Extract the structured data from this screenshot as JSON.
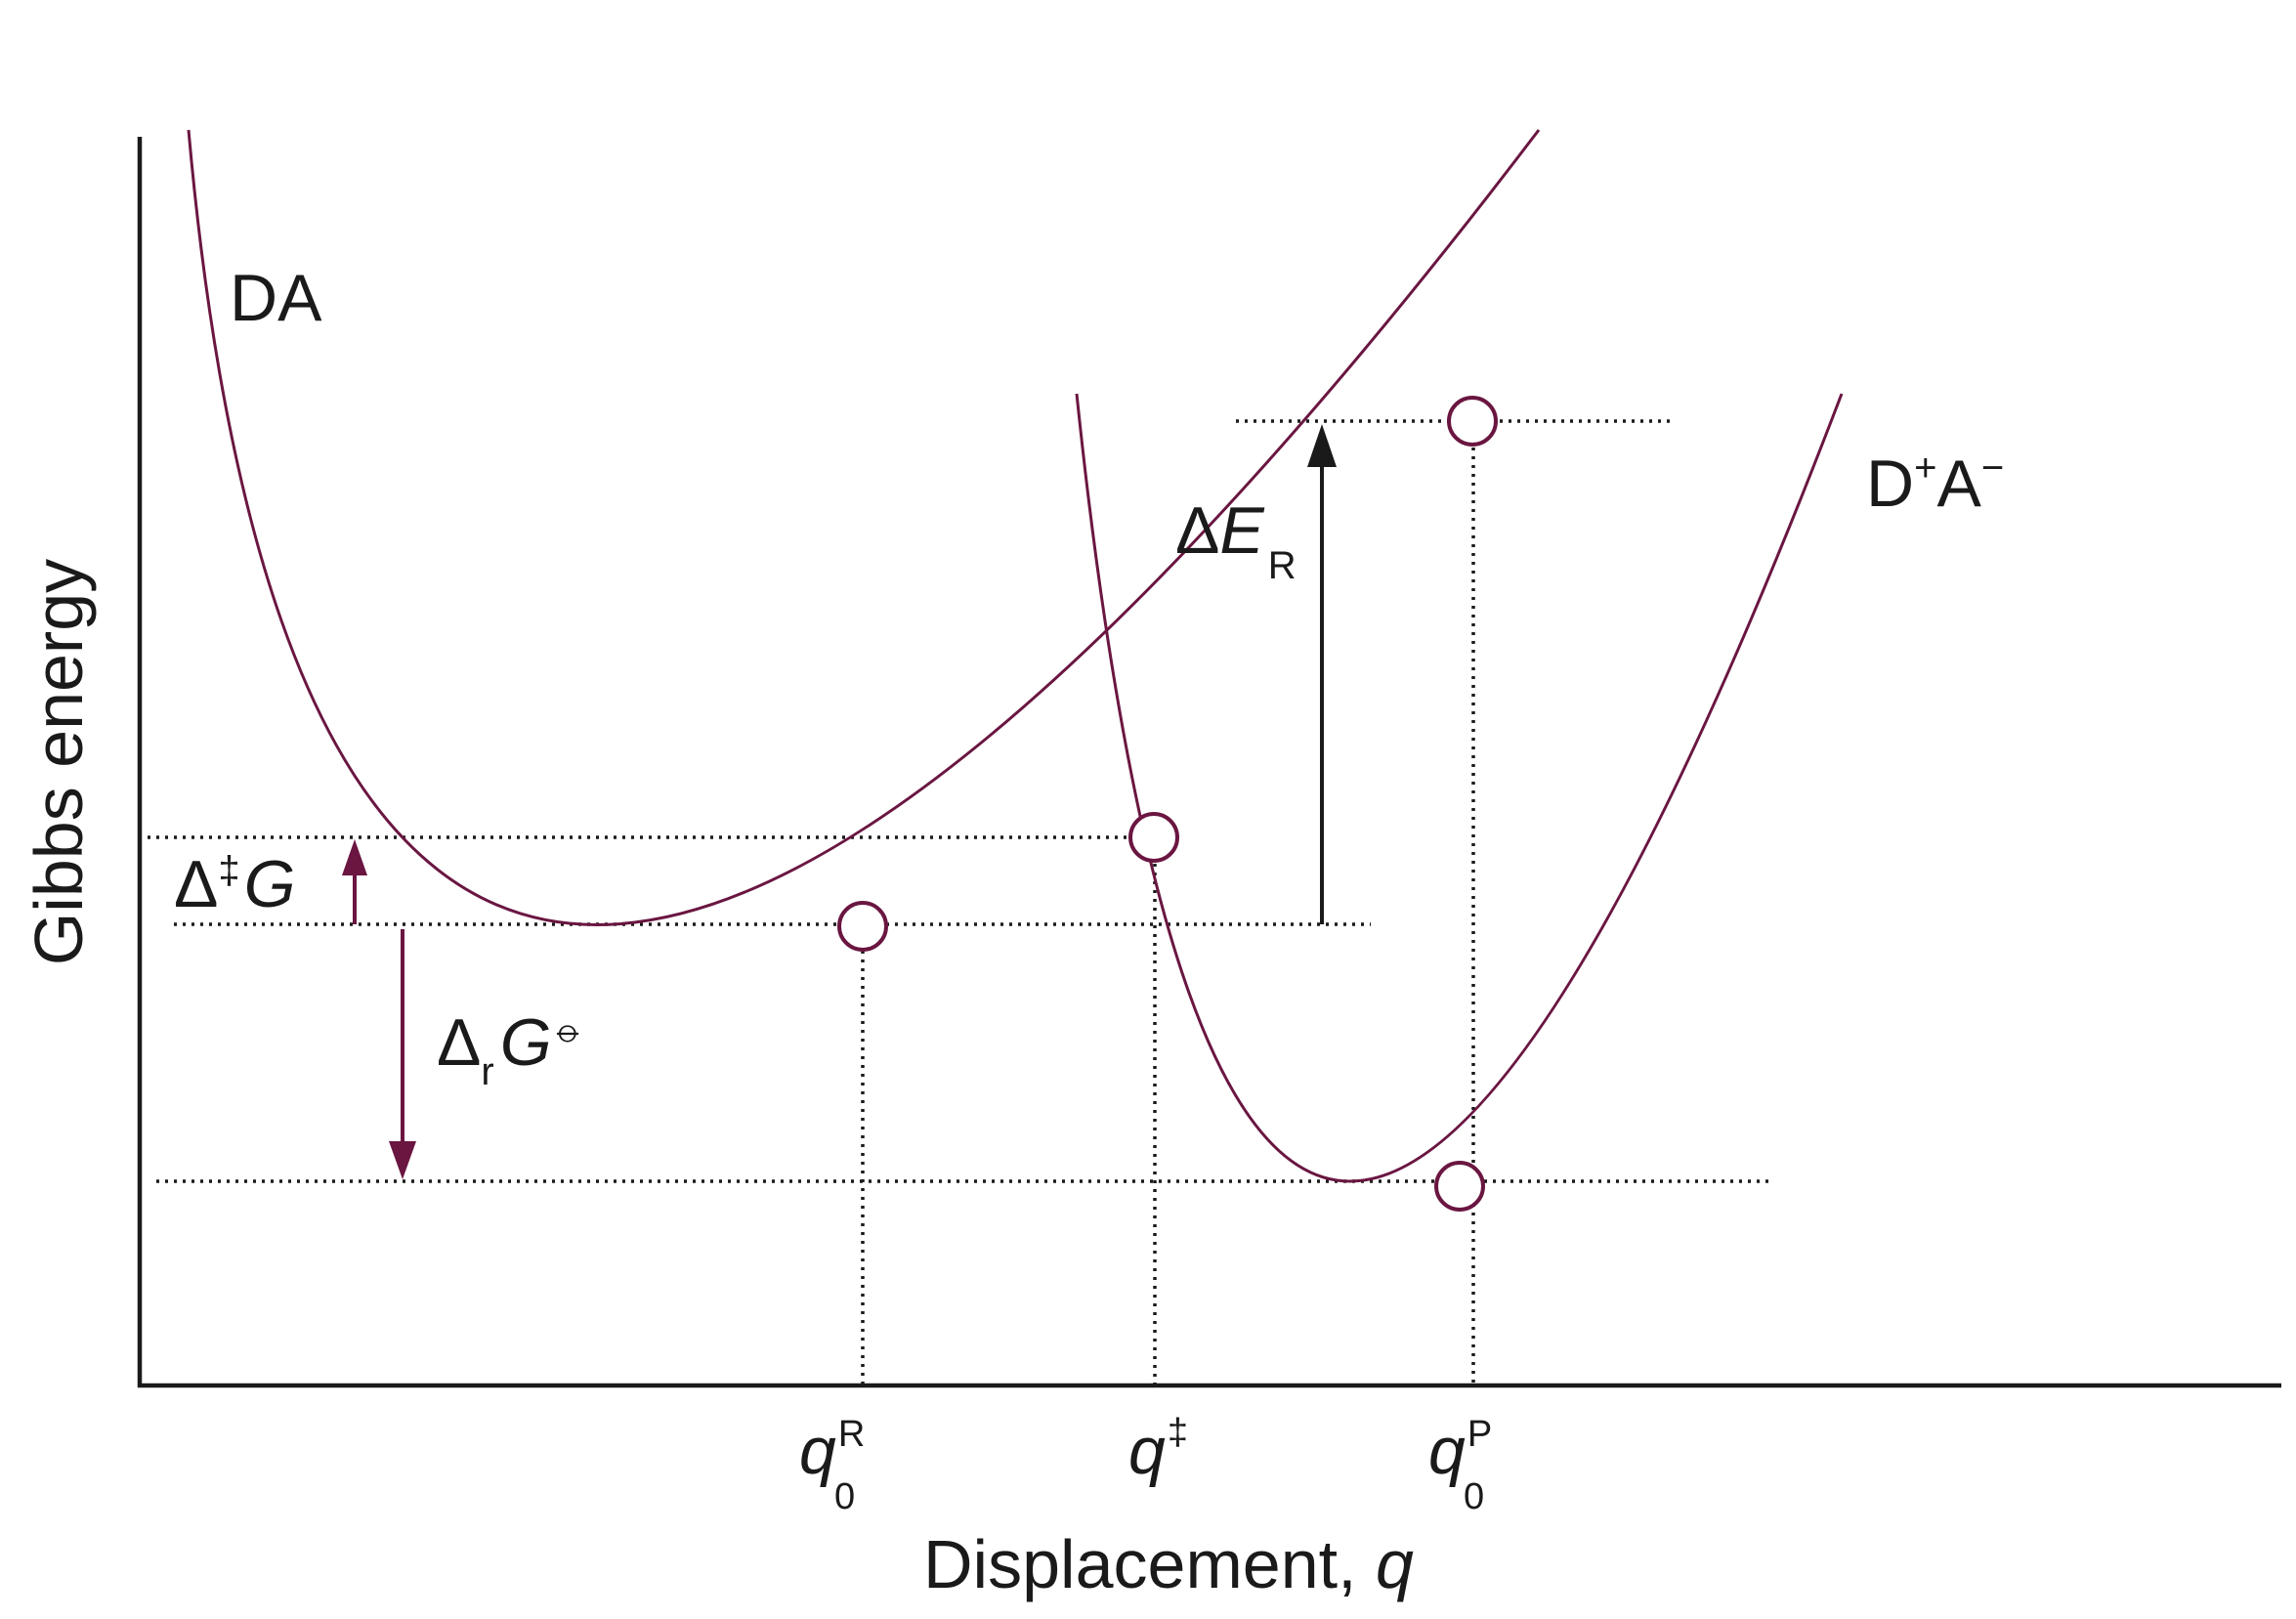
{
  "colors": {
    "curve": "#6a1641",
    "ink": "#1a1a1a"
  },
  "axes": {
    "y_label": "Gibbs energy",
    "x_label": "Displacement, ",
    "x_label_var": "q"
  },
  "curves": {
    "reactant": {
      "label": "DA"
    },
    "product": {
      "label_base1": "D",
      "sup1": "+",
      "label_base2": "A",
      "sup2": "−"
    }
  },
  "ticks": {
    "q0R": {
      "base": "q",
      "sub": "0",
      "sup": "R"
    },
    "qdag": {
      "base": "q",
      "sup": "‡"
    },
    "q0P": {
      "base": "q",
      "sub": "0",
      "sup": "P"
    }
  },
  "annotations": {
    "activation": {
      "delta": "Δ",
      "sup": "‡",
      "var": "G"
    },
    "reaction": {
      "delta": "Δ",
      "sub": "r",
      "var": "G",
      "sup": "⦵"
    },
    "reorganization": {
      "delta": "Δ",
      "var": "E",
      "sub": "R"
    }
  }
}
